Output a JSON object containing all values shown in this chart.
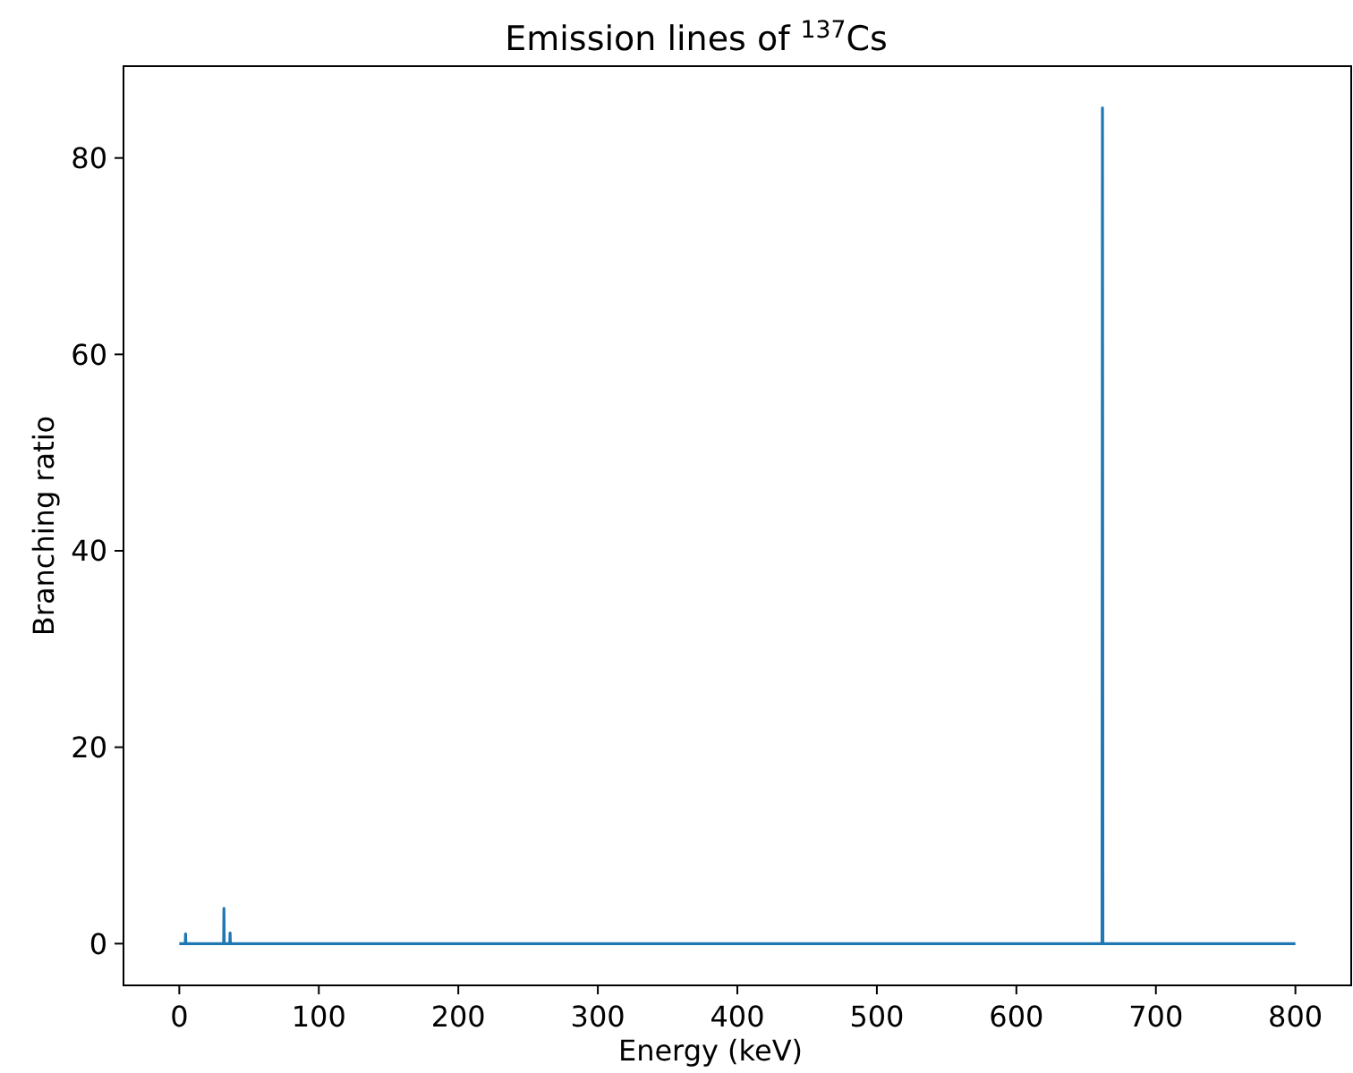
{
  "chart_data": {
    "type": "line",
    "title": "Emission lines of $^{137}$Cs",
    "xlabel": "Energy (keV)",
    "ylabel": "Branching ratio",
    "series": [
      {
        "color": "#1f77b4",
        "x": [
          0,
          4.3,
          4.5,
          4.7,
          31.8,
          32.0,
          32.2,
          36.2,
          36.4,
          36.6,
          661.4,
          661.7,
          662.0,
          800
        ],
        "values": [
          0,
          0,
          1.0,
          0,
          0,
          3.6,
          0,
          0,
          1.1,
          0,
          0,
          85.1,
          0,
          0
        ]
      }
    ],
    "xlim": [
      -40,
      840
    ],
    "ylim": [
      -4.25,
      89.35
    ],
    "xticks": [
      0,
      100,
      200,
      300,
      400,
      500,
      600,
      700,
      800
    ],
    "yticks": [
      0,
      20,
      40,
      60,
      80
    ],
    "grid": false
  }
}
